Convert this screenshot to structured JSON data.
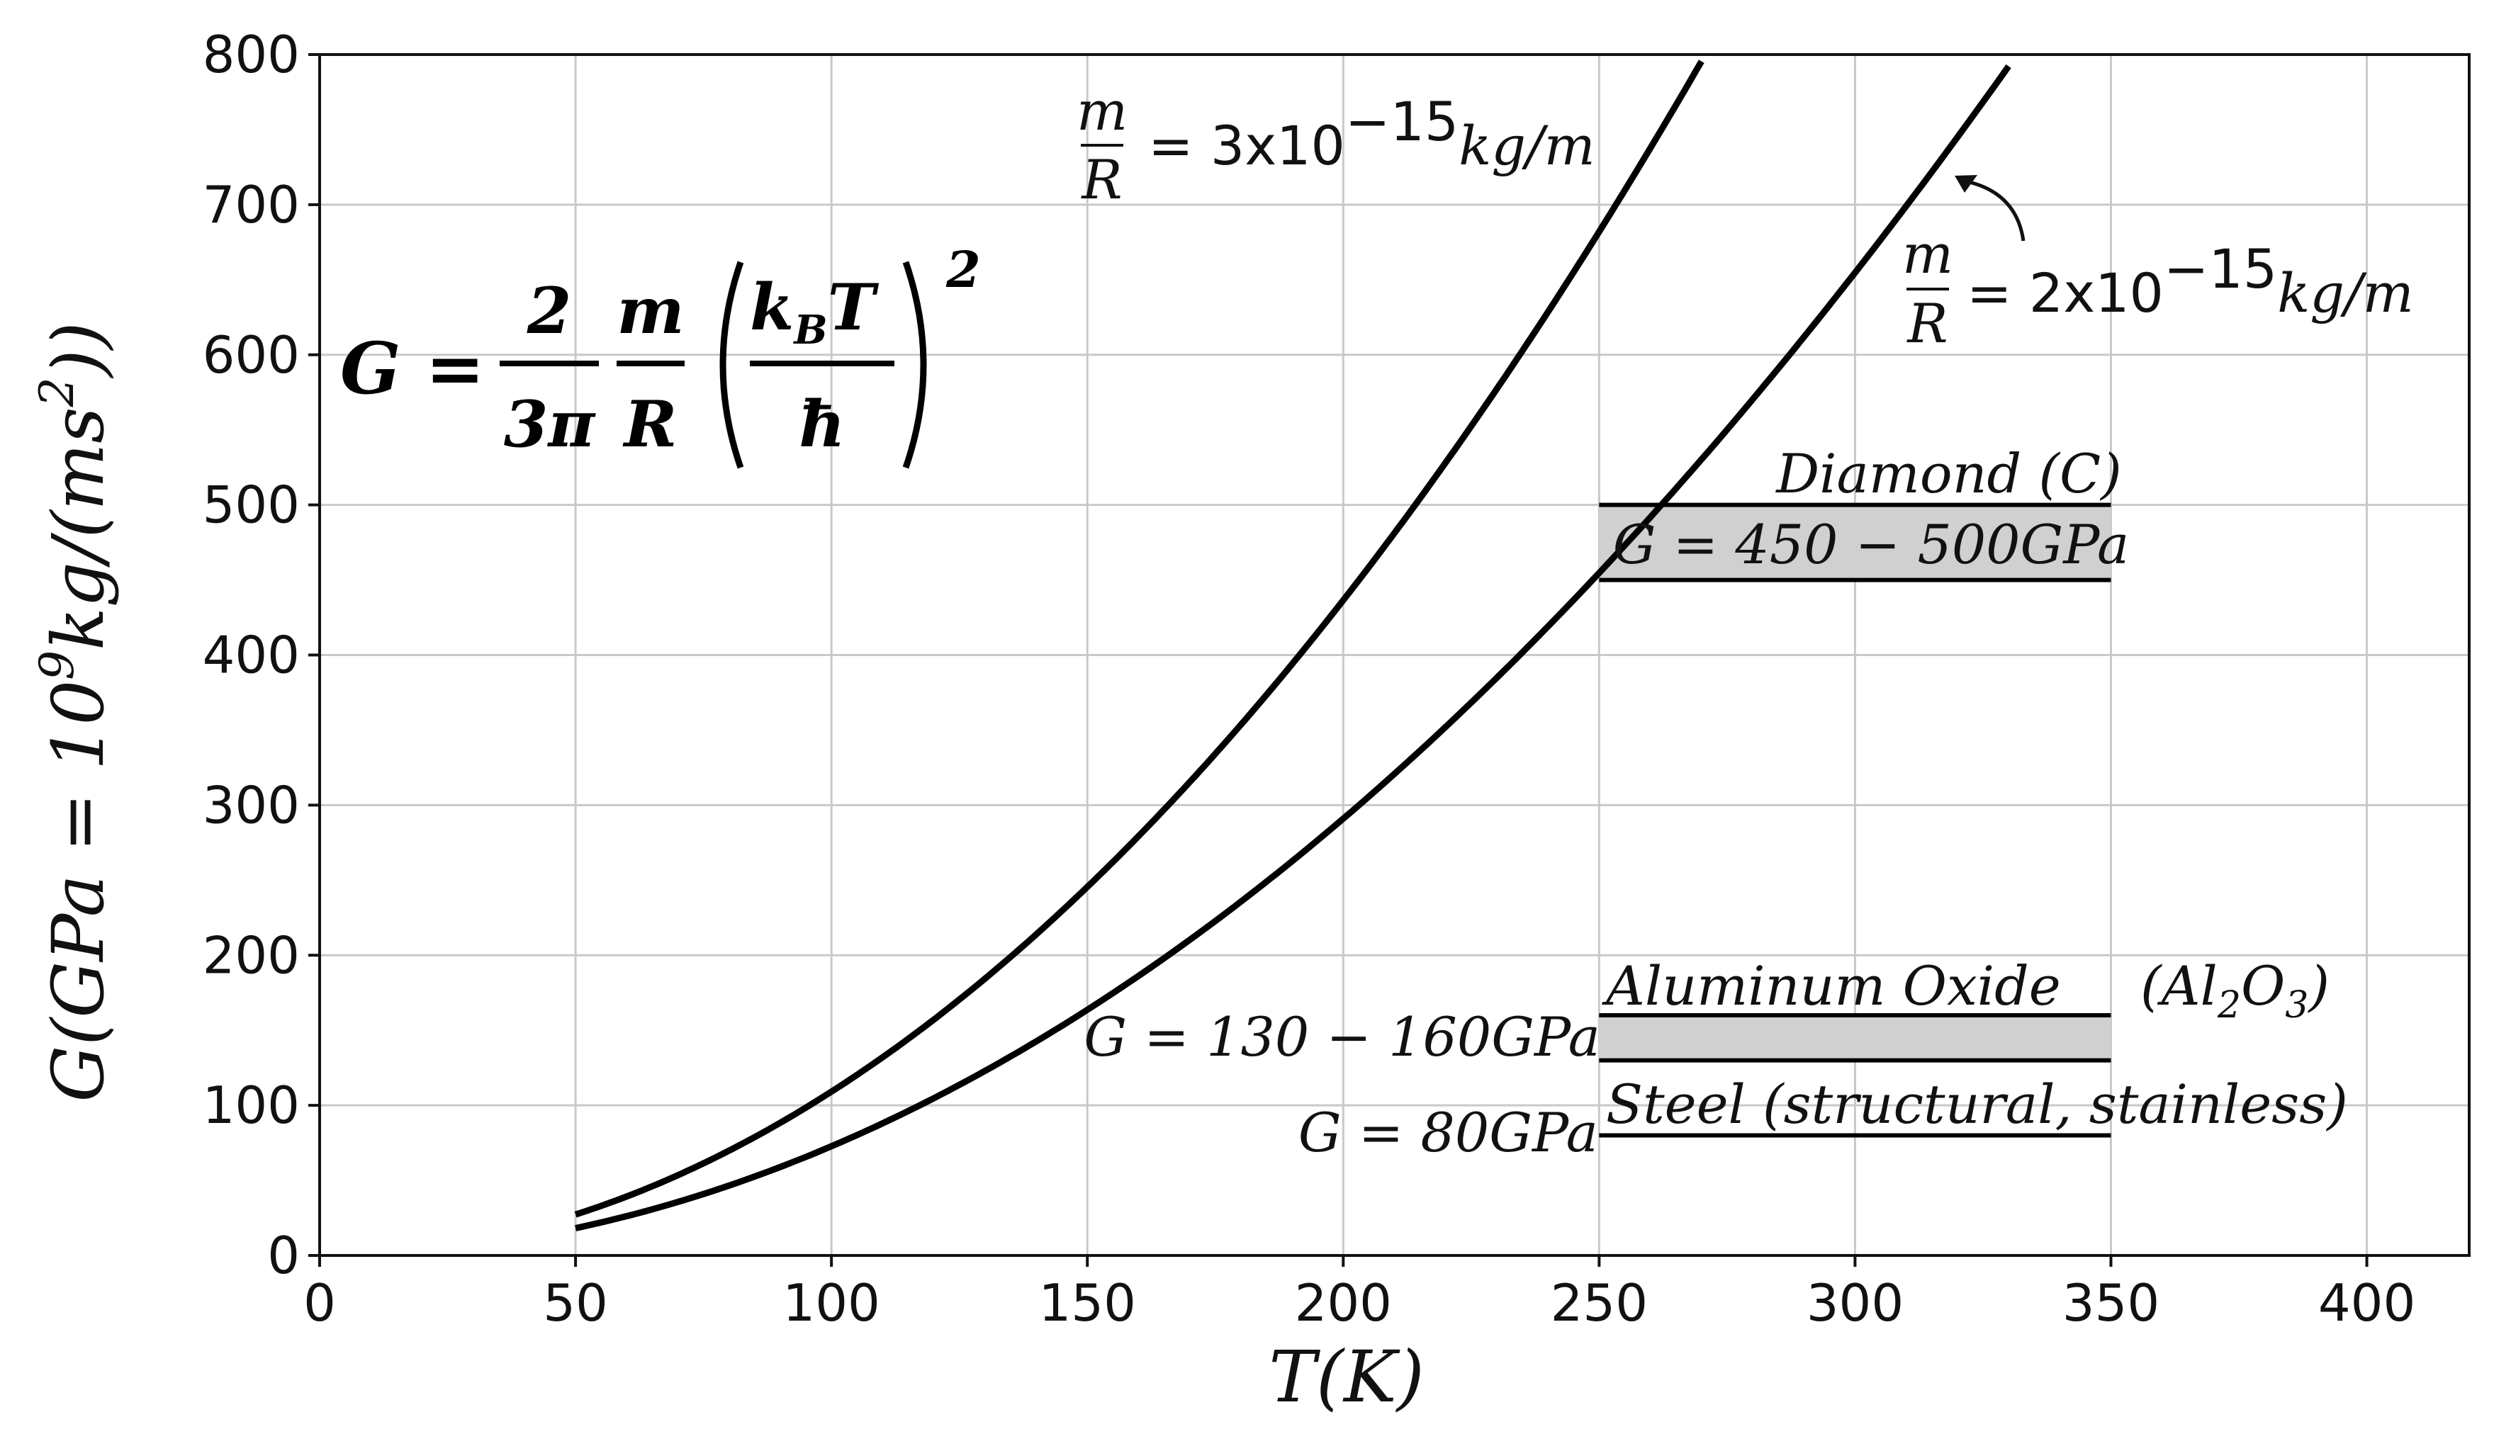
{
  "chart_data": {
    "type": "line",
    "title": "",
    "xlabel": "T(K)",
    "ylabel": "G(GPa = 10⁹kg/(ms²))",
    "xlim": [
      0,
      420
    ],
    "ylim": [
      0,
      800
    ],
    "xticks": [
      0,
      50,
      100,
      150,
      200,
      250,
      300,
      350,
      400
    ],
    "yticks": [
      0,
      100,
      200,
      300,
      400,
      500,
      600,
      700,
      800
    ],
    "grid": true,
    "formula": "G = (2/3π)(m/R)(k_B T/ħ)²",
    "series": [
      {
        "name": "m/R = 3x10⁻¹⁵kg/m",
        "m_over_R": 3e-15,
        "x": [
          50,
          75,
          100,
          125,
          150,
          175,
          200,
          225,
          250,
          270
        ],
        "y": [
          27.5,
          61.9,
          110.0,
          171.9,
          247.5,
          336.9,
          440.0,
          556.9,
          687.6,
          802.0
        ]
      },
      {
        "name": "m/R = 2x10⁻¹⁵kg/m",
        "m_over_R": 2e-15,
        "x": [
          50,
          100,
          150,
          200,
          250,
          300,
          330
        ],
        "y": [
          18.3,
          73.3,
          165.0,
          293.3,
          458.3,
          660.0,
          798.6
        ]
      }
    ],
    "bands": [
      {
        "name": "Diamond (C)",
        "label": "G = 450 − 500GPa",
        "x": [
          250,
          350
        ],
        "y": [
          450,
          500
        ]
      },
      {
        "name": "Aluminum Oxide (Al₂O₃)",
        "label": "G = 130 − 160GPa",
        "x": [
          250,
          350
        ],
        "y": [
          130,
          160
        ]
      },
      {
        "name": "Steel (structural, stainless)",
        "label": "G = 80GPa",
        "x": [
          250,
          350
        ],
        "y": [
          80,
          80
        ]
      }
    ]
  },
  "labels": {
    "curve3_prefix": "= 3x10",
    "curve3_exp": "−15",
    "curve3_unit": "kg/m",
    "curve2_prefix": "= 2x10",
    "curve2_exp": "−15",
    "curve2_unit": "kg/m",
    "m": "m",
    "R": "R",
    "diamond_name": "Diamond (C)",
    "diamond_range": "G = 450 − 500GPa",
    "alox_name": "Aluminum Oxide",
    "alox_formula_open": "(Al",
    "alox_sub1": "2",
    "alox_mid": "O",
    "alox_sub2": "3",
    "alox_close": ")",
    "alox_range": "G = 130 − 160GPa",
    "steel_name": "Steel (structural, stainless)",
    "steel_range": "G = 80GPa",
    "formula_G": "G =",
    "formula_2": "2",
    "formula_3pi": "3π",
    "formula_m": "m",
    "formula_R": "R",
    "formula_kB": "k",
    "formula_B": "B",
    "formula_T": "T",
    "formula_hbar": "ħ",
    "formula_sq": "2",
    "xlabel": "T(K)",
    "ylabel_main": "G(GPa = 10",
    "ylabel_exp9": "9",
    "ylabel_mid": "kg/(ms",
    "ylabel_exp2": "2",
    "ylabel_end": "))"
  }
}
